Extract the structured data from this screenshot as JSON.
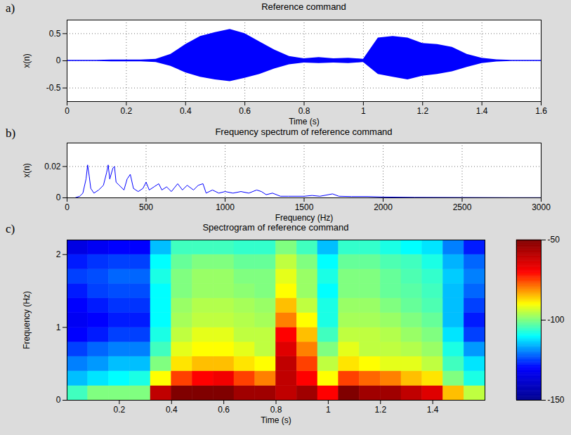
{
  "chart_data": [
    {
      "type": "area",
      "panel_label": "a)",
      "title": "Reference command",
      "xlabel": "Time (s)",
      "ylabel": "x(n)",
      "xlim": [
        0,
        1.6
      ],
      "xticks": [
        0,
        0.2,
        0.4,
        0.6,
        0.8,
        1,
        1.2,
        1.4,
        1.6
      ],
      "ylim": [
        -0.75,
        0.75
      ],
      "yticks": [
        -0.5,
        0,
        0.5
      ],
      "grid": true,
      "color": "#0000ff",
      "x": [
        0,
        0.05,
        0.1,
        0.15,
        0.2,
        0.25,
        0.3,
        0.35,
        0.4,
        0.45,
        0.5,
        0.55,
        0.6,
        0.65,
        0.7,
        0.75,
        0.8,
        0.85,
        0.9,
        0.95,
        1.0,
        1.05,
        1.1,
        1.15,
        1.2,
        1.25,
        1.3,
        1.35,
        1.4,
        1.45,
        1.5,
        1.55,
        1.6
      ],
      "upper": [
        0.01,
        0.01,
        0.01,
        0.015,
        0.015,
        0.015,
        0.03,
        0.12,
        0.3,
        0.45,
        0.52,
        0.58,
        0.5,
        0.35,
        0.2,
        0.08,
        0.04,
        0.06,
        0.04,
        0.05,
        0.03,
        0.42,
        0.45,
        0.42,
        0.32,
        0.3,
        0.25,
        0.12,
        0.05,
        0.02,
        0.01,
        0.01,
        0.01
      ],
      "lower": [
        -0.01,
        -0.01,
        -0.01,
        -0.015,
        -0.015,
        -0.015,
        -0.03,
        -0.1,
        -0.22,
        -0.3,
        -0.35,
        -0.38,
        -0.32,
        -0.25,
        -0.15,
        -0.07,
        -0.04,
        -0.05,
        -0.04,
        -0.05,
        -0.03,
        -0.25,
        -0.3,
        -0.35,
        -0.28,
        -0.25,
        -0.2,
        -0.12,
        -0.05,
        -0.02,
        -0.01,
        -0.01,
        -0.01
      ]
    },
    {
      "type": "line",
      "panel_label": "b)",
      "title": "Frequency spectrum of reference command",
      "xlabel": "Frequency (Hz)",
      "ylabel": "x(n)",
      "xlim": [
        0,
        3000
      ],
      "xticks": [
        0,
        500,
        1000,
        1500,
        2000,
        2500,
        3000
      ],
      "ylim": [
        0,
        0.035
      ],
      "yticks": [
        0,
        0.02
      ],
      "grid": true,
      "color": "#0000ff",
      "x": [
        0,
        50,
        80,
        100,
        120,
        130,
        140,
        150,
        170,
        200,
        230,
        250,
        260,
        270,
        290,
        300,
        310,
        330,
        360,
        380,
        400,
        420,
        450,
        480,
        500,
        520,
        550,
        580,
        600,
        630,
        660,
        700,
        730,
        760,
        800,
        830,
        860,
        880,
        920,
        960,
        1000,
        1050,
        1100,
        1150,
        1200,
        1230,
        1260,
        1300,
        1350,
        1400,
        1500,
        1550,
        1600,
        1680,
        1720,
        1800,
        1900,
        2000,
        2200,
        2500,
        2800,
        3000
      ],
      "values": [
        0,
        0,
        0.001,
        0.003,
        0.012,
        0.021,
        0.014,
        0.006,
        0.003,
        0.005,
        0.008,
        0.016,
        0.021,
        0.012,
        0.019,
        0.02,
        0.01,
        0.008,
        0.005,
        0.012,
        0.015,
        0.006,
        0.004,
        0.006,
        0.01,
        0.005,
        0.007,
        0.009,
        0.005,
        0.007,
        0.004,
        0.009,
        0.005,
        0.008,
        0.005,
        0.008,
        0.009,
        0.003,
        0.005,
        0.003,
        0.004,
        0.003,
        0.004,
        0.003,
        0.005,
        0.004,
        0.002,
        0.003,
        0.001,
        0.001,
        0.001,
        0.0015,
        0.001,
        0.0025,
        0.001,
        0.0008,
        0.0008,
        0.0005,
        0.0003,
        0.0002,
        0.0001,
        0.0001
      ]
    },
    {
      "type": "heatmap",
      "panel_label": "c)",
      "title": "Spectrogram of reference command",
      "xlabel": "Time (s)",
      "ylabel": "Frequency (Hz)",
      "xlim": [
        0,
        1.6
      ],
      "xticks": [
        0.2,
        0.4,
        0.6,
        0.8,
        1,
        1.2,
        1.4
      ],
      "ylim": [
        0,
        2.2
      ],
      "yticks": [
        0,
        1,
        2
      ],
      "grid": false,
      "x_bins": [
        0,
        0.08,
        0.16,
        0.24,
        0.32,
        0.4,
        0.48,
        0.56,
        0.64,
        0.72,
        0.8,
        0.88,
        0.96,
        1.04,
        1.12,
        1.2,
        1.28,
        1.36,
        1.44,
        1.52,
        1.6
      ],
      "y_bins": [
        0,
        0.2,
        0.4,
        0.6,
        0.8,
        1.0,
        1.2,
        1.4,
        1.6,
        1.8,
        2.0,
        2.2
      ],
      "z": [
        [
          -105,
          -100,
          -100,
          -100,
          -60,
          -50,
          -50,
          -50,
          -55,
          -55,
          -60,
          -55,
          -70,
          -50,
          -55,
          -55,
          -60,
          -65,
          -85,
          -95
        ],
        [
          -115,
          -112,
          -110,
          -108,
          -90,
          -75,
          -70,
          -68,
          -75,
          -80,
          -60,
          -70,
          -90,
          -75,
          -78,
          -80,
          -85,
          -88,
          -100,
          -108
        ],
        [
          -120,
          -118,
          -115,
          -115,
          -100,
          -88,
          -85,
          -85,
          -88,
          -90,
          -60,
          -75,
          -95,
          -88,
          -90,
          -92,
          -92,
          -95,
          -105,
          -112
        ],
        [
          -125,
          -122,
          -120,
          -120,
          -105,
          -92,
          -90,
          -90,
          -92,
          -95,
          -65,
          -80,
          -100,
          -92,
          -95,
          -95,
          -96,
          -98,
          -108,
          -118
        ],
        [
          -130,
          -128,
          -125,
          -125,
          -108,
          -95,
          -92,
          -92,
          -95,
          -95,
          -70,
          -85,
          -105,
          -95,
          -95,
          -96,
          -98,
          -100,
          -112,
          -125
        ],
        [
          -132,
          -130,
          -128,
          -128,
          -110,
          -97,
          -95,
          -95,
          -96,
          -97,
          -80,
          -90,
          -108,
          -97,
          -97,
          -98,
          -100,
          -102,
          -115,
          -128
        ],
        [
          -130,
          -128,
          -126,
          -126,
          -110,
          -98,
          -96,
          -96,
          -97,
          -98,
          -85,
          -95,
          -108,
          -98,
          -98,
          -100,
          -102,
          -104,
          -115,
          -125
        ],
        [
          -128,
          -125,
          -124,
          -124,
          -110,
          -100,
          -98,
          -98,
          -99,
          -100,
          -90,
          -98,
          -110,
          -100,
          -100,
          -102,
          -103,
          -105,
          -115,
          -122
        ],
        [
          -125,
          -124,
          -122,
          -122,
          -108,
          -100,
          -98,
          -98,
          -100,
          -100,
          -92,
          -98,
          -108,
          -100,
          -100,
          -102,
          -104,
          -106,
          -114,
          -120
        ],
        [
          -128,
          -126,
          -125,
          -125,
          -110,
          -102,
          -100,
          -100,
          -102,
          -102,
          -95,
          -100,
          -110,
          -102,
          -102,
          -104,
          -105,
          -108,
          -116,
          -122
        ],
        [
          -135,
          -132,
          -130,
          -130,
          -115,
          -105,
          -105,
          -105,
          -106,
          -106,
          -100,
          -105,
          -115,
          -106,
          -106,
          -108,
          -110,
          -112,
          -120,
          -128
        ]
      ],
      "colorbar": {
        "range": [
          -150,
          -50
        ],
        "ticks": [
          -50,
          -100,
          -150
        ]
      }
    }
  ]
}
